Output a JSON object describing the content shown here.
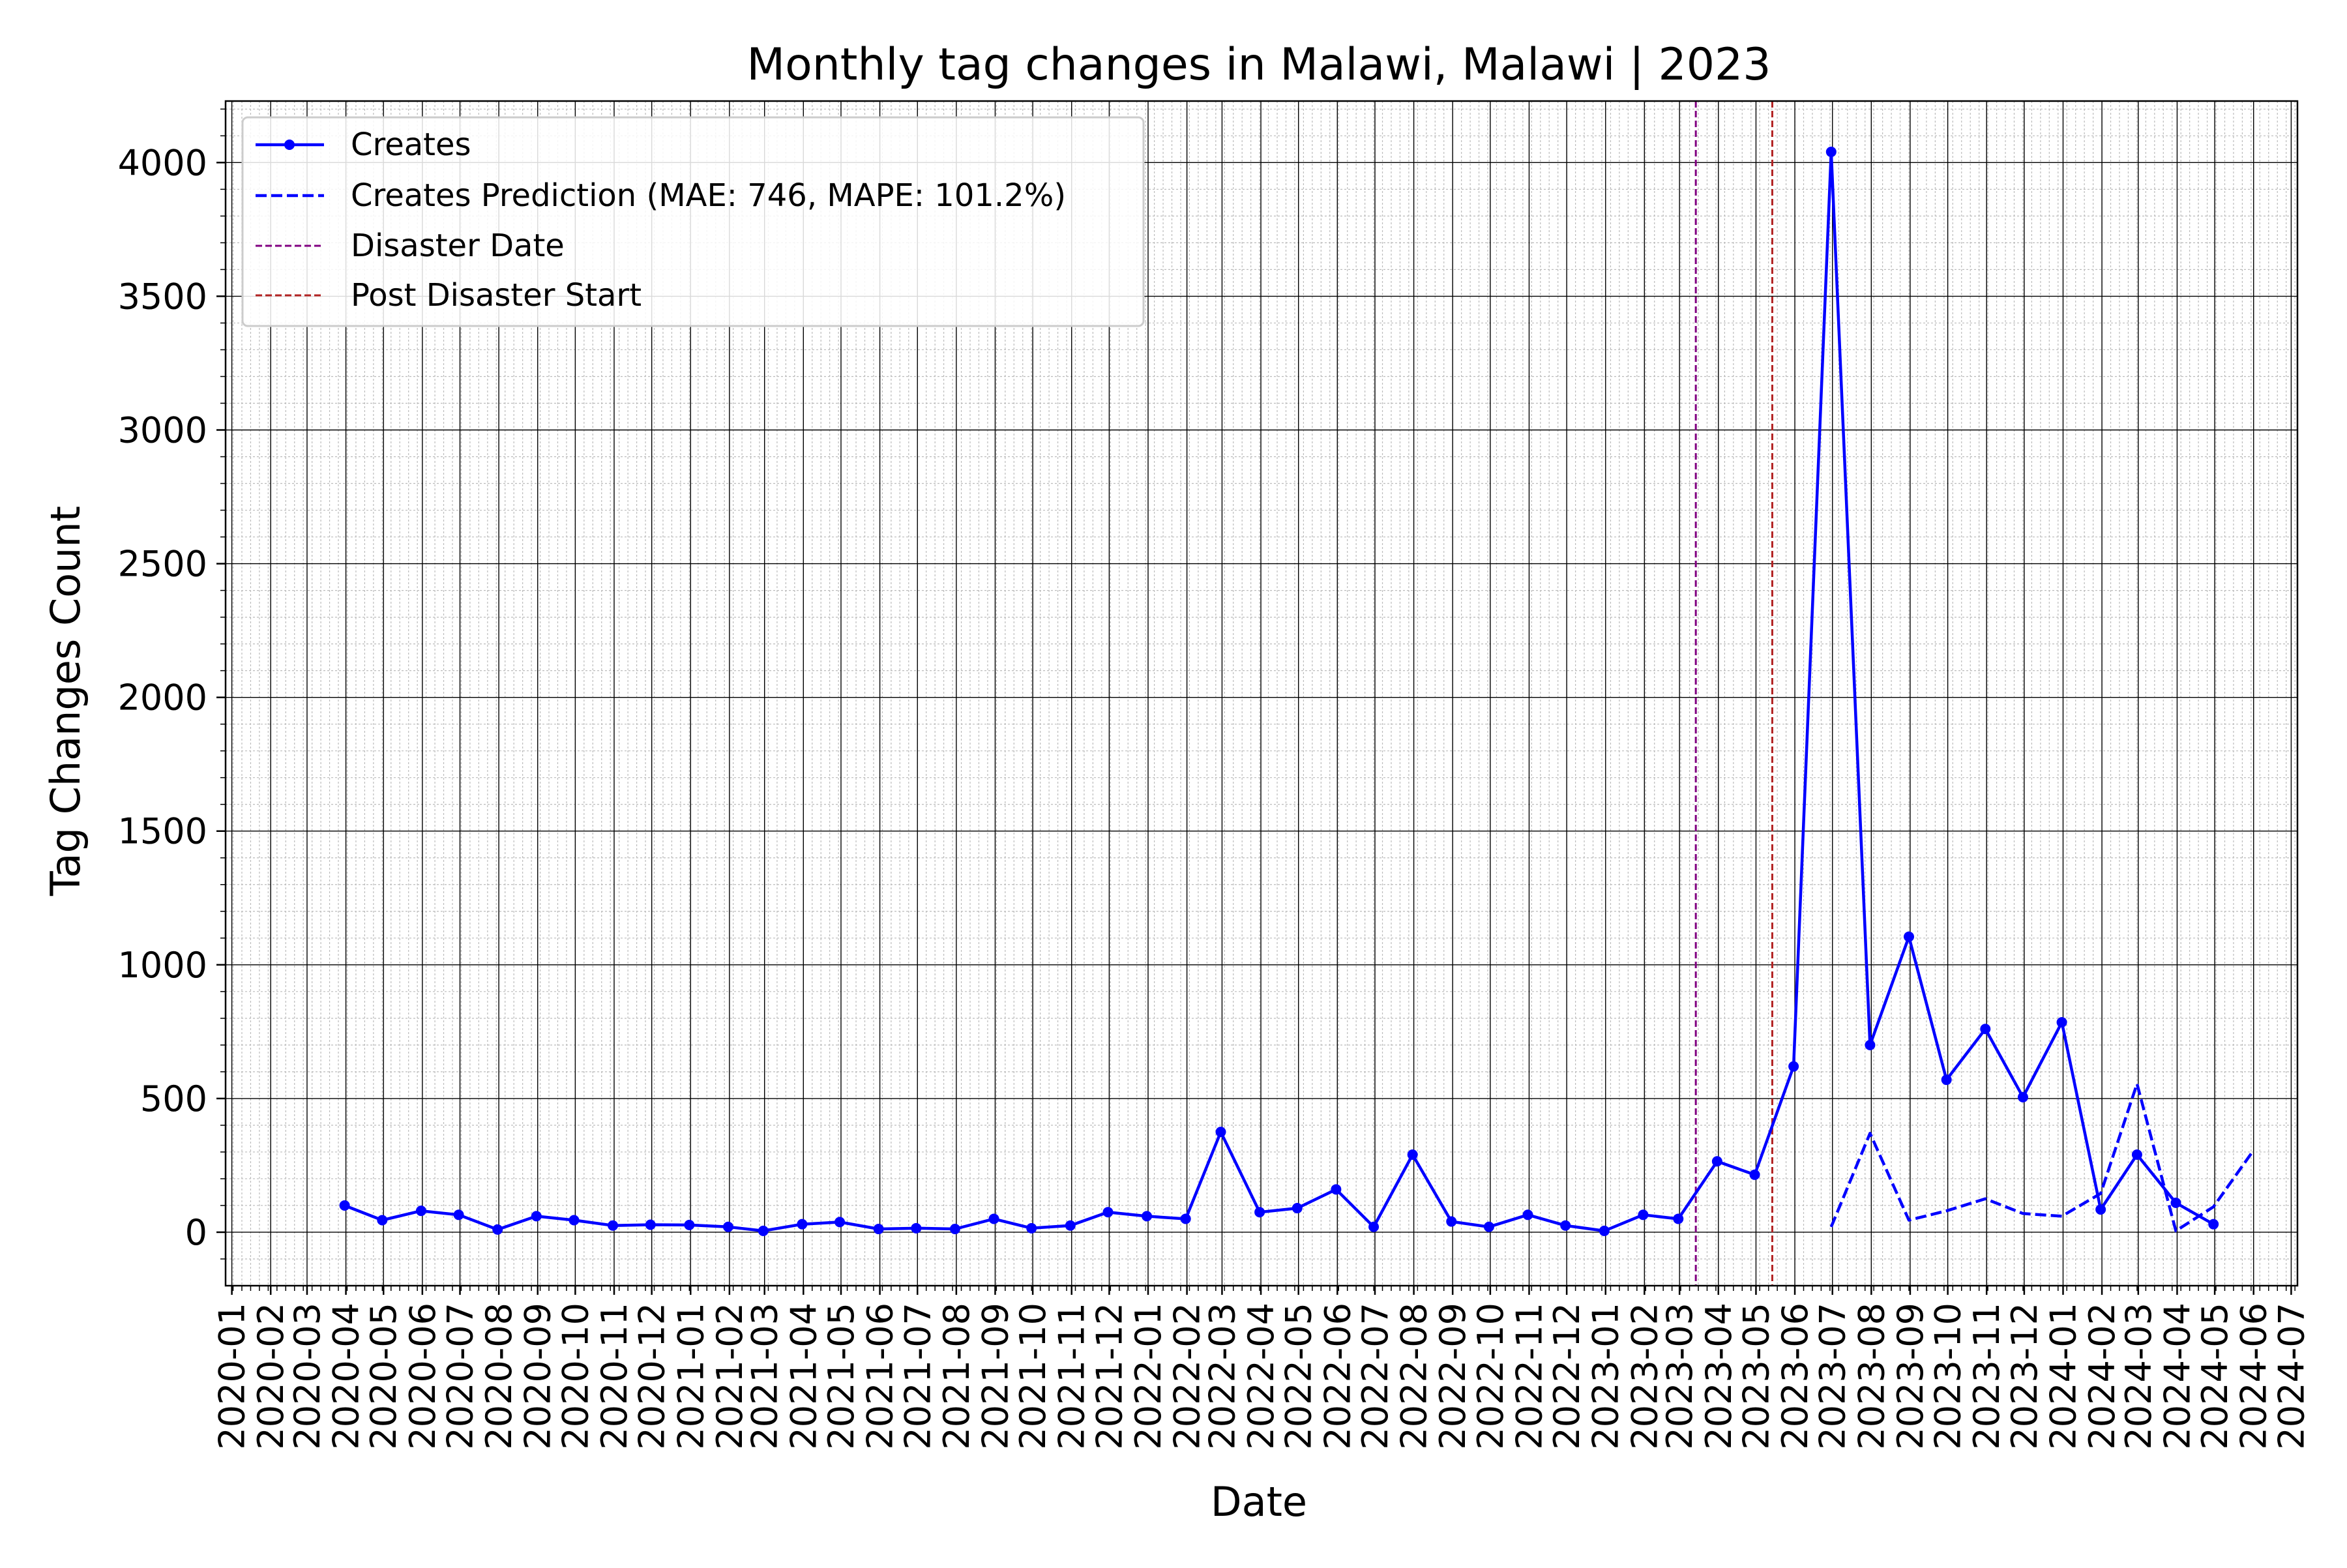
{
  "chart_data": {
    "type": "line",
    "title": "Monthly tag changes in Malawi, Malawi | 2023",
    "xlabel": "Date",
    "ylabel": "Tag Changes Count",
    "ylim": [
      -200,
      4230
    ],
    "xlim": [
      "2020-01",
      "2024-07"
    ],
    "grid": true,
    "legend_position": "top-left",
    "x_tick_labels": [
      "2020-01",
      "2020-02",
      "2020-03",
      "2020-04",
      "2020-05",
      "2020-06",
      "2020-07",
      "2020-08",
      "2020-09",
      "2020-10",
      "2020-11",
      "2020-12",
      "2021-01",
      "2021-02",
      "2021-03",
      "2021-04",
      "2021-05",
      "2021-06",
      "2021-07",
      "2021-08",
      "2021-09",
      "2021-10",
      "2021-11",
      "2021-12",
      "2022-01",
      "2022-02",
      "2022-03",
      "2022-04",
      "2022-05",
      "2022-06",
      "2022-07",
      "2022-08",
      "2022-09",
      "2022-10",
      "2022-11",
      "2022-12",
      "2023-01",
      "2023-02",
      "2023-03",
      "2023-04",
      "2023-05",
      "2023-06",
      "2023-07",
      "2023-08",
      "2023-09",
      "2023-10",
      "2023-11",
      "2023-12",
      "2024-01",
      "2024-02",
      "2024-03",
      "2024-04",
      "2024-05",
      "2024-06",
      "2024-07"
    ],
    "y_ticks": [
      0,
      500,
      1000,
      1500,
      2000,
      2500,
      3000,
      3500,
      4000
    ],
    "series": [
      {
        "name": "Creates",
        "color": "#0000ff",
        "style": "solid-with-markers",
        "x": [
          "2020-03-31",
          "2020-04-30",
          "2020-05-31",
          "2020-06-30",
          "2020-07-31",
          "2020-08-31",
          "2020-09-30",
          "2020-10-31",
          "2020-11-30",
          "2020-12-31",
          "2021-01-31",
          "2021-02-28",
          "2021-03-31",
          "2021-04-30",
          "2021-05-31",
          "2021-06-30",
          "2021-07-31",
          "2021-08-31",
          "2021-09-30",
          "2021-10-31",
          "2021-11-30",
          "2021-12-31",
          "2022-01-31",
          "2022-02-28",
          "2022-03-31",
          "2022-04-30",
          "2022-05-31",
          "2022-06-30",
          "2022-07-31",
          "2022-08-31",
          "2022-09-30",
          "2022-10-31",
          "2022-11-30",
          "2022-12-31",
          "2023-01-31",
          "2023-02-28",
          "2023-03-31",
          "2023-04-30",
          "2023-05-31",
          "2023-06-30",
          "2023-07-31",
          "2023-08-31",
          "2023-09-30",
          "2023-10-31",
          "2023-11-30",
          "2023-12-31",
          "2024-01-31",
          "2024-02-29",
          "2024-03-31",
          "2024-04-30"
        ],
        "values": [
          100,
          45,
          80,
          65,
          10,
          60,
          45,
          25,
          28,
          27,
          20,
          5,
          30,
          38,
          12,
          15,
          12,
          50,
          15,
          25,
          75,
          60,
          50,
          375,
          75,
          90,
          160,
          20,
          290,
          40,
          20,
          65,
          25,
          5,
          65,
          50,
          265,
          215,
          620,
          4040,
          700,
          1105,
          570,
          760,
          505,
          785,
          85,
          290,
          110,
          30
        ]
      },
      {
        "name": "Creates Prediction (MAE: 746, MAPE: 101.2%)",
        "color": "#0000ff",
        "style": "dashed",
        "x": [
          "2023-06-30",
          "2023-07-31",
          "2023-08-31",
          "2023-09-30",
          "2023-10-31",
          "2023-11-30",
          "2023-12-31",
          "2024-01-31",
          "2024-02-29",
          "2024-03-31",
          "2024-04-30",
          "2024-05-31"
        ],
        "values": [
          20,
          370,
          45,
          80,
          125,
          70,
          60,
          145,
          555,
          5,
          95,
          300
        ]
      }
    ],
    "vlines": [
      {
        "name": "Disaster Date",
        "x": "2023-03-14",
        "color": "#800080"
      },
      {
        "name": "Post Disaster Start",
        "x": "2023-05-14",
        "color": "#b22222"
      }
    ]
  }
}
